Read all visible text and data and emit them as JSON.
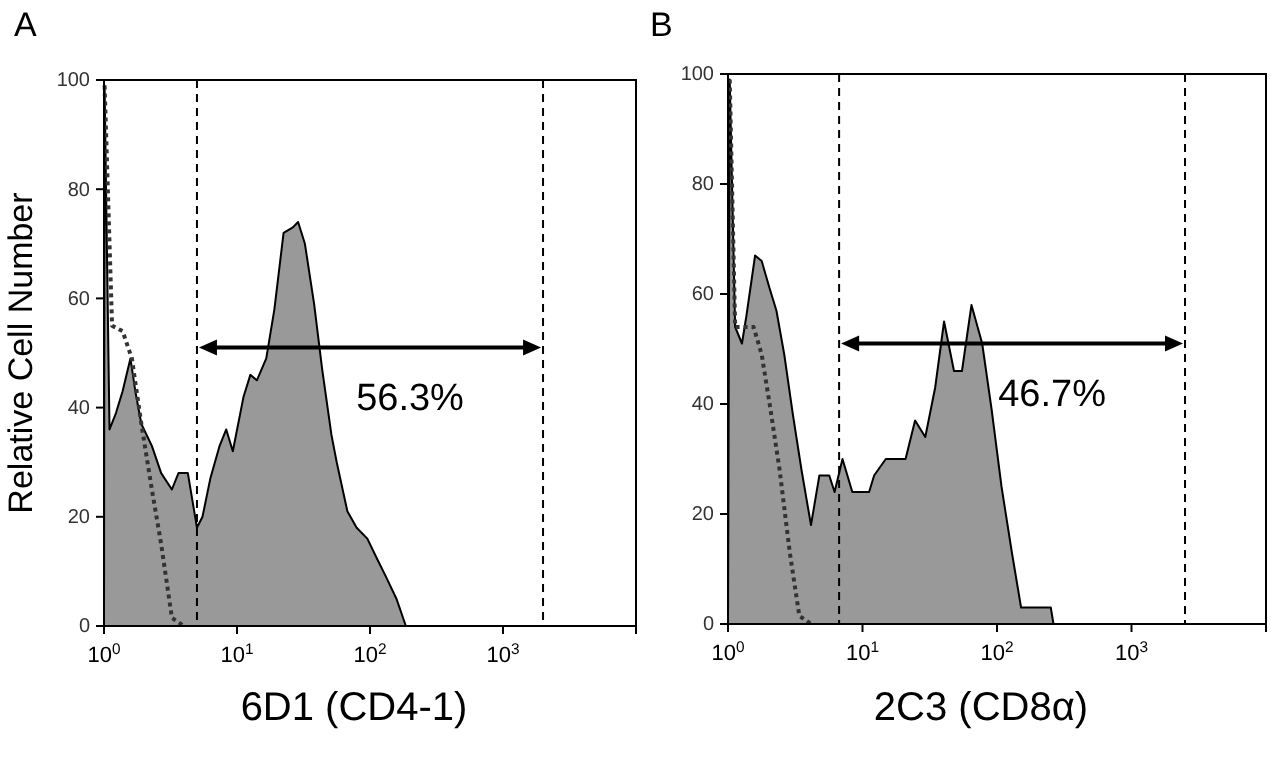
{
  "chart_data": [
    {
      "type": "area",
      "title": "A",
      "xlabel": "6D1 (CD4-1)",
      "ylabel": "Relative Cell Number",
      "log": "x",
      "xlim": [
        1,
        10000
      ],
      "xticks": [
        {
          "value": 1,
          "label": "10$^{0}$"
        },
        {
          "value": 10,
          "label": "10$^{1}$"
        },
        {
          "value": 100,
          "label": "10$^{2}$"
        },
        {
          "value": 1000,
          "label": "10$^{3}$"
        }
      ],
      "ylim": [
        0,
        100
      ],
      "yticks": [
        0,
        20,
        40,
        60,
        80,
        100
      ],
      "grid": false,
      "ref_lines": [
        {
          "axis": "x",
          "value": 5
        },
        {
          "axis": "x",
          "value": 2000
        }
      ],
      "annotations": [
        "56.3%"
      ],
      "series": [
        {
          "color": "#999999",
          "x": [
            1,
            1.01,
            1.1,
            1.23,
            1.38,
            1.58,
            1.72,
            1.91,
            2.29,
            2.69,
            3.24,
            3.63,
            4.27,
            5.0,
            5.5,
            6.3,
            7.4,
            8.3,
            9.3,
            11.2,
            12.6,
            14.1,
            16.6,
            19.1,
            22.4,
            26.3,
            28.8,
            32.4,
            38,
            43.7,
            51.3,
            56.2,
            67.6,
            79.4,
            95.5,
            112,
            132,
            158,
            186,
            10000
          ],
          "values": [
            0,
            99,
            36,
            39,
            43,
            49,
            43,
            37,
            33,
            28,
            25,
            28,
            28,
            18,
            20,
            27,
            33,
            36,
            32,
            42,
            46,
            45,
            49,
            58,
            72,
            73,
            74,
            70,
            59,
            47,
            35,
            30,
            21,
            18,
            16,
            12.5,
            9,
            5,
            0,
            0
          ]
        },
        {
          "type": "line",
          "line_style": "dotted",
          "color": "#333333",
          "x": [
            1.01,
            1.15,
            1.38,
            1.62,
            1.91,
            2.29,
            2.69,
            3.24,
            3.98
          ],
          "values": [
            99,
            55,
            54,
            49,
            37,
            25,
            15,
            1.5,
            0
          ]
        }
      ]
    },
    {
      "type": "area",
      "title": "B",
      "xlabel": "2C3 (CD8α)",
      "log": "x",
      "xlim": [
        1,
        10000
      ],
      "xticks": [
        {
          "value": 1,
          "label": "10$^{0}$"
        },
        {
          "value": 10,
          "label": "10$^{1}$"
        },
        {
          "value": 100,
          "label": "10$^{2}$"
        },
        {
          "value": 1000,
          "label": "10$^{3}$"
        }
      ],
      "ylim": [
        0,
        100
      ],
      "yticks": [
        0,
        20,
        40,
        60,
        80,
        100
      ],
      "grid": false,
      "ref_lines": [
        {
          "axis": "x",
          "value": 6.7
        },
        {
          "axis": "x",
          "value": 2500
        }
      ],
      "annotations": [
        "46.7%"
      ],
      "series": [
        {
          "color": "#999999",
          "x": [
            1,
            1.03,
            1.13,
            1.27,
            1.37,
            1.59,
            1.78,
            2.04,
            2.29,
            2.62,
            3.04,
            3.52,
            4.14,
            4.78,
            5.66,
            6.2,
            7.1,
            8.4,
            11.2,
            12.2,
            14.9,
            20.9,
            24.6,
            29.3,
            34.7,
            40.4,
            47.9,
            54.9,
            64.6,
            77.6,
            91.2,
            108,
            129,
            151,
            251,
            263,
            10000
          ],
          "values": [
            0,
            99,
            54,
            51,
            56,
            67,
            66,
            61,
            57,
            49,
            38,
            28,
            18,
            27,
            27,
            24,
            30,
            24,
            24,
            27,
            30,
            30,
            37,
            34,
            43,
            55,
            46,
            46,
            58,
            51,
            39,
            25,
            13,
            3,
            3,
            0,
            0
          ]
        },
        {
          "type": "line",
          "line_style": "dotted",
          "color": "#333333",
          "x": [
            1.03,
            1.13,
            1.55,
            1.78,
            2.04,
            2.42,
            2.88,
            3.39,
            4.14
          ],
          "values": [
            99,
            54,
            54,
            49,
            40,
            28,
            13,
            1.5,
            0
          ]
        }
      ]
    }
  ]
}
